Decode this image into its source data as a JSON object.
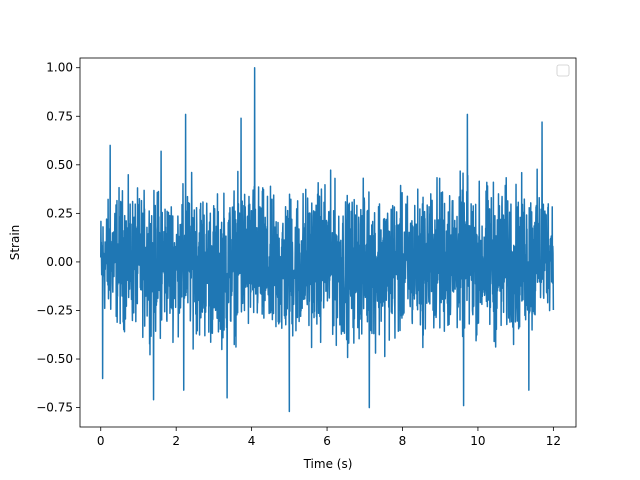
{
  "chart_data": {
    "type": "line",
    "xlabel": "Time (s)",
    "ylabel": "Strain",
    "xlim": [
      -0.55,
      12.6
    ],
    "ylim": [
      -0.85,
      1.05
    ],
    "x_ticks": [
      0,
      2,
      4,
      6,
      8,
      10,
      12
    ],
    "x_tick_labels": [
      "0",
      "2",
      "4",
      "6",
      "8",
      "10",
      "12"
    ],
    "y_ticks": [
      -0.75,
      -0.5,
      -0.25,
      0.0,
      0.25,
      0.5,
      0.75,
      1.0
    ],
    "y_tick_labels": [
      "−0.75",
      "−0.50",
      "−0.25",
      "0.00",
      "0.25",
      "0.50",
      "0.75",
      "1.00"
    ],
    "grid": false,
    "legend": {
      "placement": "upper-right",
      "entries": []
    },
    "series": [
      {
        "color": "#1f77b4",
        "x_range": [
          0,
          12
        ],
        "envelope": {
          "x": [
            0.0,
            0.5,
            1.0,
            1.5,
            2.0,
            2.5,
            3.0,
            3.5,
            4.0,
            4.5,
            5.0,
            5.5,
            6.0,
            6.5,
            7.0,
            7.5,
            8.0,
            8.5,
            9.0,
            9.5,
            10.0,
            10.5,
            11.0,
            11.5,
            12.0
          ],
          "upper": [
            0.35,
            0.5,
            0.45,
            0.5,
            0.45,
            0.55,
            0.45,
            0.5,
            0.55,
            0.45,
            0.5,
            0.5,
            0.55,
            0.45,
            0.5,
            0.5,
            0.45,
            0.5,
            0.55,
            0.55,
            0.5,
            0.55,
            0.5,
            0.55,
            0.45
          ],
          "lower": [
            -0.35,
            -0.45,
            -0.45,
            -0.5,
            -0.45,
            -0.5,
            -0.55,
            -0.5,
            -0.5,
            -0.55,
            -0.55,
            -0.5,
            -0.5,
            -0.55,
            -0.5,
            -0.55,
            -0.5,
            -0.5,
            -0.5,
            -0.5,
            -0.5,
            -0.55,
            -0.5,
            -0.5,
            -0.3
          ]
        },
        "spikes": [
          {
            "x": 4.08,
            "y": 1.0
          },
          {
            "x": 2.25,
            "y": 0.76
          },
          {
            "x": 3.72,
            "y": 0.74
          },
          {
            "x": 9.72,
            "y": 0.76
          },
          {
            "x": 11.7,
            "y": 0.72
          },
          {
            "x": 0.25,
            "y": 0.6
          },
          {
            "x": 1.6,
            "y": 0.57
          },
          {
            "x": 5.0,
            "y": -0.77
          },
          {
            "x": 7.12,
            "y": -0.75
          },
          {
            "x": 9.62,
            "y": -0.74
          },
          {
            "x": 1.4,
            "y": -0.71
          },
          {
            "x": 3.35,
            "y": -0.7
          },
          {
            "x": 0.05,
            "y": -0.6
          },
          {
            "x": 2.2,
            "y": -0.66
          },
          {
            "x": 11.35,
            "y": -0.66
          }
        ]
      }
    ]
  }
}
